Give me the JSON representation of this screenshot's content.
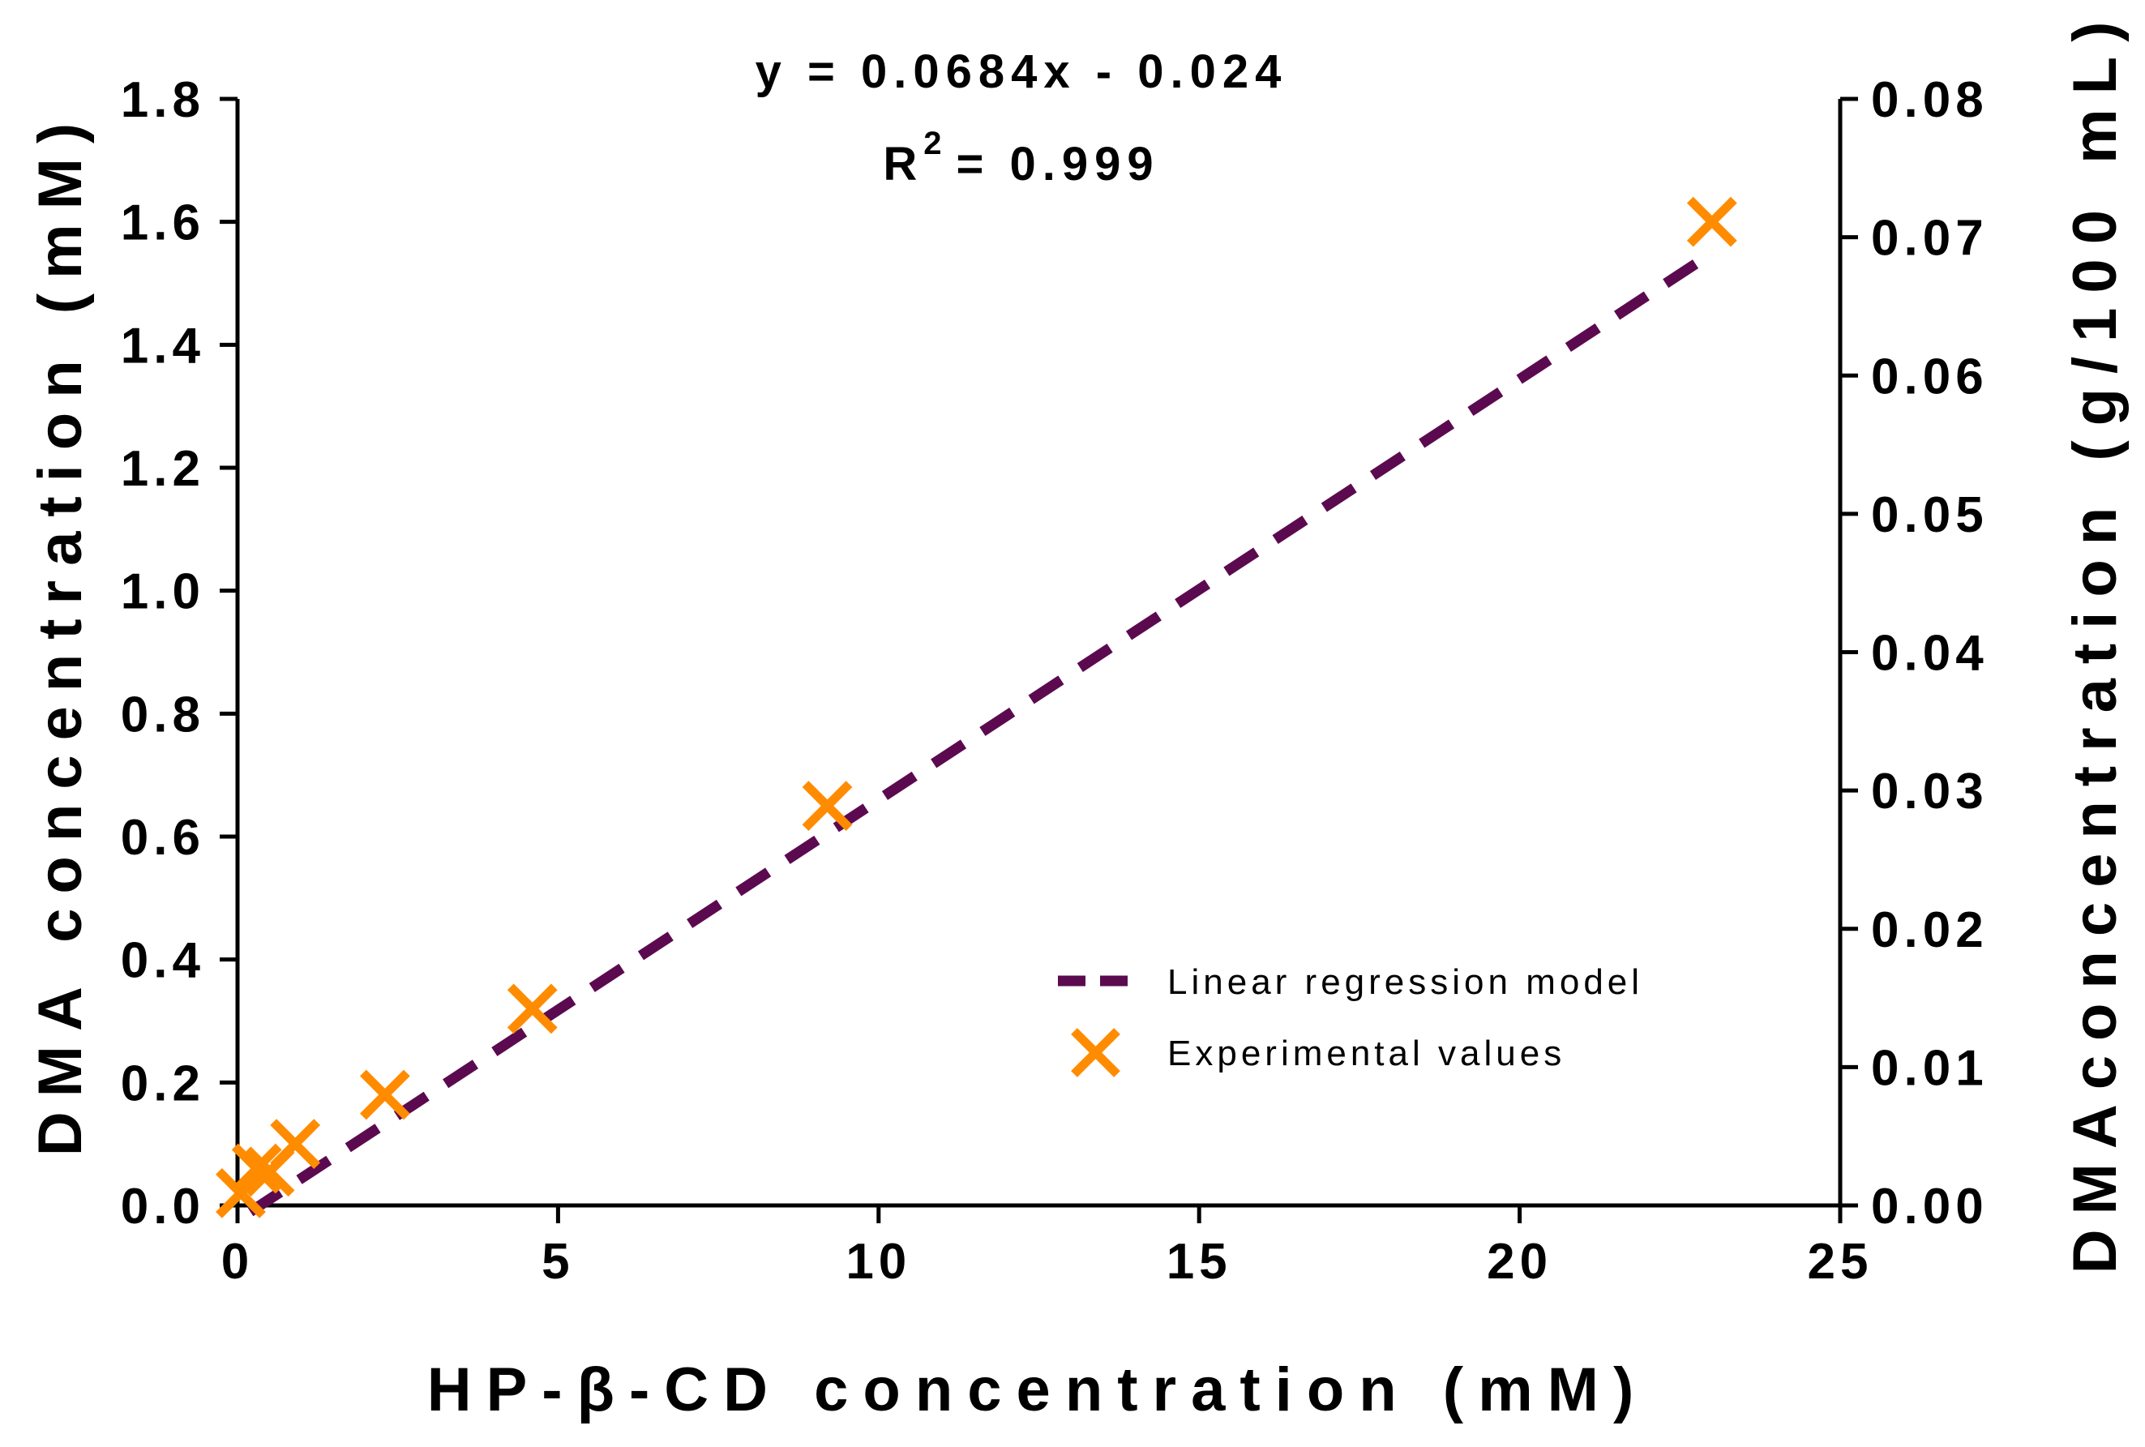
{
  "chart_data": {
    "type": "scatter",
    "title": "",
    "equation": "y = 0.0684x - 0.024",
    "r2_prefix": "R",
    "r2_superscript": "2",
    "r2_value": "= 0.999",
    "xlabel": "HP-β-CD concentration (mM)",
    "ylabel": "DMA concentration (mM)",
    "y2label": "DMAconcentration (g/100 mL)",
    "xlim": [
      0,
      25
    ],
    "ylim": [
      0,
      1.8
    ],
    "y2lim": [
      0,
      0.08
    ],
    "x_ticks": [
      "0",
      "5",
      "10",
      "15",
      "20",
      "25"
    ],
    "y_ticks": [
      "0.0",
      "0.2",
      "0.4",
      "0.6",
      "0.8",
      "1.0",
      "1.2",
      "1.4",
      "1.6",
      "1.8"
    ],
    "y2_ticks": [
      "0.00",
      "0.01",
      "0.02",
      "0.03",
      "0.04",
      "0.05",
      "0.06",
      "0.07",
      "0.08"
    ],
    "series": [
      {
        "name": "Linear regression model",
        "kind": "line",
        "slope": 0.0684,
        "intercept": -0.024,
        "x_range": [
          0.2,
          23
        ],
        "color": "#5c0a50"
      },
      {
        "name": "Experimental values",
        "kind": "scatter",
        "marker": "x",
        "color": "#ff8c00",
        "points": [
          {
            "x": 0.05,
            "y": 0.02
          },
          {
            "x": 0.3,
            "y": 0.06
          },
          {
            "x": 0.5,
            "y": 0.055
          },
          {
            "x": 0.9,
            "y": 0.1
          },
          {
            "x": 2.3,
            "y": 0.18
          },
          {
            "x": 4.6,
            "y": 0.32
          },
          {
            "x": 9.2,
            "y": 0.65
          },
          {
            "x": 23.0,
            "y": 1.6
          }
        ]
      }
    ],
    "legend": {
      "position": "bottom-right",
      "entries": [
        "Linear regression model",
        "Experimental values"
      ]
    }
  }
}
